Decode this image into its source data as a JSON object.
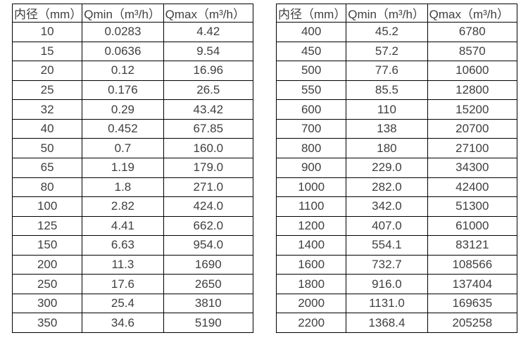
{
  "colors": {
    "background": "#ffffff",
    "border": "#000000",
    "text": "#3f3f3f"
  },
  "chart_data": [
    {
      "type": "table",
      "name": "small-diameter-flow-range-table",
      "columns": [
        "内径（mm）",
        "Qmin（m³/h）",
        "Qmax（m³/h）"
      ],
      "rows": [
        [
          "10",
          "0.0283",
          "4.42"
        ],
        [
          "15",
          "0.0636",
          "9.54"
        ],
        [
          "20",
          "0.12",
          "16.96"
        ],
        [
          "25",
          "0.176",
          "26.5"
        ],
        [
          "32",
          "0.29",
          "43.42"
        ],
        [
          "40",
          "0.452",
          "67.85"
        ],
        [
          "50",
          "0.7",
          "160.0"
        ],
        [
          "65",
          "1.19",
          "179.0"
        ],
        [
          "80",
          "1.8",
          "271.0"
        ],
        [
          "100",
          "2.82",
          "424.0"
        ],
        [
          "125",
          "4.41",
          "662.0"
        ],
        [
          "150",
          "6.63",
          "954.0"
        ],
        [
          "200",
          "11.3",
          "1690"
        ],
        [
          "250",
          "17.6",
          "2650"
        ],
        [
          "300",
          "25.4",
          "3810"
        ],
        [
          "350",
          "34.6",
          "5190"
        ]
      ]
    },
    {
      "type": "table",
      "name": "large-diameter-flow-range-table",
      "columns": [
        "内径（mm）",
        "Qmin（m³/h）",
        "Qmax（m³/h）"
      ],
      "rows": [
        [
          "400",
          "45.2",
          "6780"
        ],
        [
          "450",
          "57.2",
          "8570"
        ],
        [
          "500",
          "77.6",
          "10600"
        ],
        [
          "550",
          "85.5",
          "12800"
        ],
        [
          "600",
          "110",
          "15200"
        ],
        [
          "700",
          "138",
          "20700"
        ],
        [
          "800",
          "180",
          "27100"
        ],
        [
          "900",
          "229.0",
          "34300"
        ],
        [
          "1000",
          "282.0",
          "42400"
        ],
        [
          "1100",
          "342.0",
          "51300"
        ],
        [
          "1200",
          "407.0",
          "61000"
        ],
        [
          "1400",
          "554.1",
          "83121"
        ],
        [
          "1600",
          "732.7",
          "108566"
        ],
        [
          "1800",
          "916.0",
          "137404"
        ],
        [
          "2000",
          "1131.0",
          "169635"
        ],
        [
          "2200",
          "1368.4",
          "205258"
        ]
      ]
    }
  ]
}
